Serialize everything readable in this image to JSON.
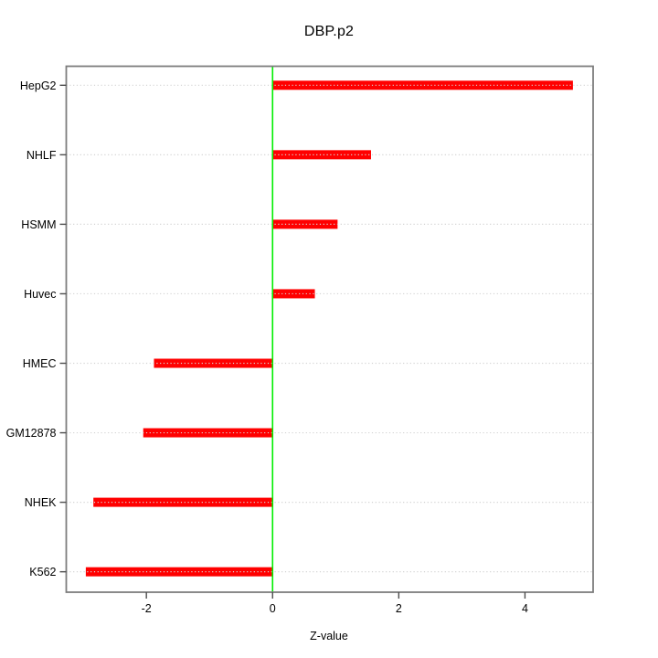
{
  "chart_data": {
    "type": "bar",
    "orientation": "horizontal",
    "title": "DBP.p2",
    "xlabel": "Z-value",
    "ylabel": "",
    "categories": [
      "HepG2",
      "NHLF",
      "HSMM",
      "Huvec",
      "HMEC",
      "GM12878",
      "NHEK",
      "K562"
    ],
    "values": [
      4.76,
      1.56,
      1.03,
      0.67,
      -1.88,
      -2.05,
      -2.84,
      -2.96
    ],
    "xlim": [
      -3.27,
      5.08
    ],
    "x_ticks": [
      -2,
      0,
      2,
      4
    ],
    "x_tick_labels": [
      "-2",
      "0",
      "2",
      "4"
    ],
    "zero_line_at": 0,
    "grid": "dotted horizontal line per category",
    "legend": "none",
    "colors": {
      "bar": "#ff0000",
      "zero_line": "#00ee00",
      "grid": "#d3d3d3",
      "box": "#7d7d7d",
      "tick": "#4d4d4d",
      "text": "#000000",
      "background": "#ffffff"
    }
  }
}
